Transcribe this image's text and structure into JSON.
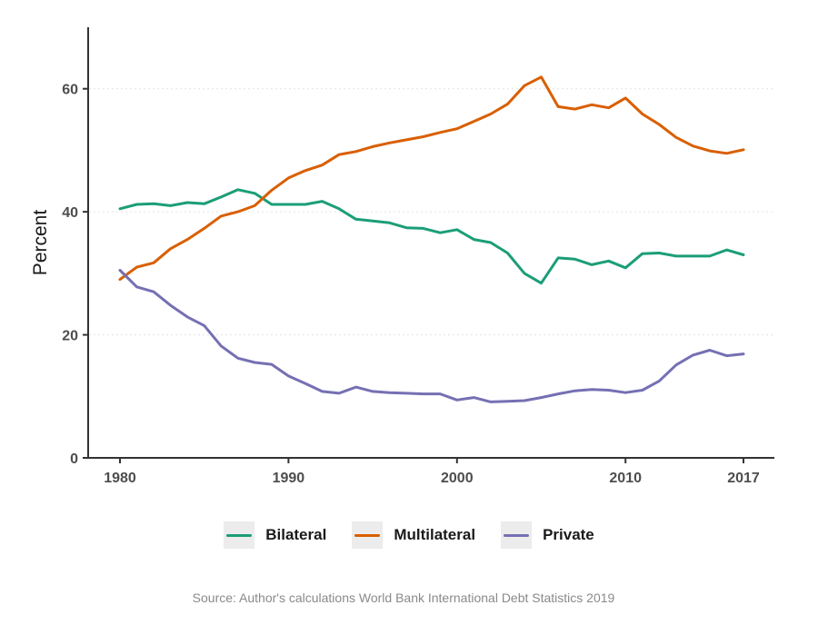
{
  "chart_data": {
    "type": "line",
    "ylabel": "Percent",
    "xlabel": "",
    "xlim": [
      1980,
      2017
    ],
    "ylim": [
      0,
      70
    ],
    "x_ticks": [
      1980,
      1990,
      2000,
      2010,
      2017
    ],
    "y_ticks": [
      0,
      20,
      40,
      60
    ],
    "grid": "horizontal dotted",
    "legend_position": "bottom",
    "x": [
      1980,
      1981,
      1982,
      1983,
      1984,
      1985,
      1986,
      1987,
      1988,
      1989,
      1990,
      1991,
      1992,
      1993,
      1994,
      1995,
      1996,
      1997,
      1998,
      1999,
      2000,
      2001,
      2002,
      2003,
      2004,
      2005,
      2006,
      2007,
      2008,
      2009,
      2010,
      2011,
      2012,
      2013,
      2014,
      2015,
      2016,
      2017
    ],
    "series": [
      {
        "name": "Bilateral",
        "color": "#1b9e77",
        "values": [
          40.5,
          41.2,
          41.3,
          41.0,
          41.5,
          41.3,
          42.4,
          43.6,
          43.0,
          41.2,
          41.2,
          41.2,
          41.7,
          40.5,
          38.8,
          38.5,
          38.2,
          37.4,
          37.3,
          36.6,
          37.1,
          35.5,
          35.0,
          33.3,
          30.0,
          28.4,
          32.5,
          32.3,
          31.4,
          32.0,
          30.9,
          33.2,
          33.3,
          32.8,
          32.8,
          32.8,
          33.8,
          33.0
        ]
      },
      {
        "name": "Multilateral",
        "color": "#d95f02",
        "values": [
          29.0,
          31.0,
          31.7,
          34.0,
          35.5,
          37.3,
          39.3,
          40.0,
          41.0,
          43.5,
          45.5,
          46.7,
          47.6,
          49.3,
          49.8,
          50.6,
          51.2,
          51.7,
          52.2,
          52.9,
          53.5,
          54.7,
          55.9,
          57.5,
          60.5,
          61.9,
          57.1,
          56.7,
          57.4,
          56.9,
          58.5,
          55.9,
          54.2,
          52.1,
          50.7,
          49.9,
          49.5,
          50.1
        ]
      },
      {
        "name": "Private",
        "color": "#7570b3",
        "values": [
          30.5,
          27.8,
          27.0,
          24.8,
          22.9,
          21.5,
          18.2,
          16.2,
          15.5,
          15.2,
          13.3,
          12.1,
          10.8,
          10.5,
          11.5,
          10.8,
          10.6,
          10.5,
          10.4,
          10.4,
          9.4,
          9.8,
          9.1,
          9.2,
          9.3,
          9.8,
          10.4,
          10.9,
          11.1,
          11.0,
          10.6,
          11.0,
          12.5,
          15.1,
          16.7,
          17.5,
          16.6,
          16.9
        ]
      }
    ]
  },
  "legend": {
    "items": [
      {
        "label": "Bilateral",
        "color": "#1b9e77"
      },
      {
        "label": "Multilateral",
        "color": "#d95f02"
      },
      {
        "label": "Private",
        "color": "#7570b3"
      }
    ]
  },
  "source_text": "Source: Author's calculations World Bank International Debt Statistics 2019"
}
